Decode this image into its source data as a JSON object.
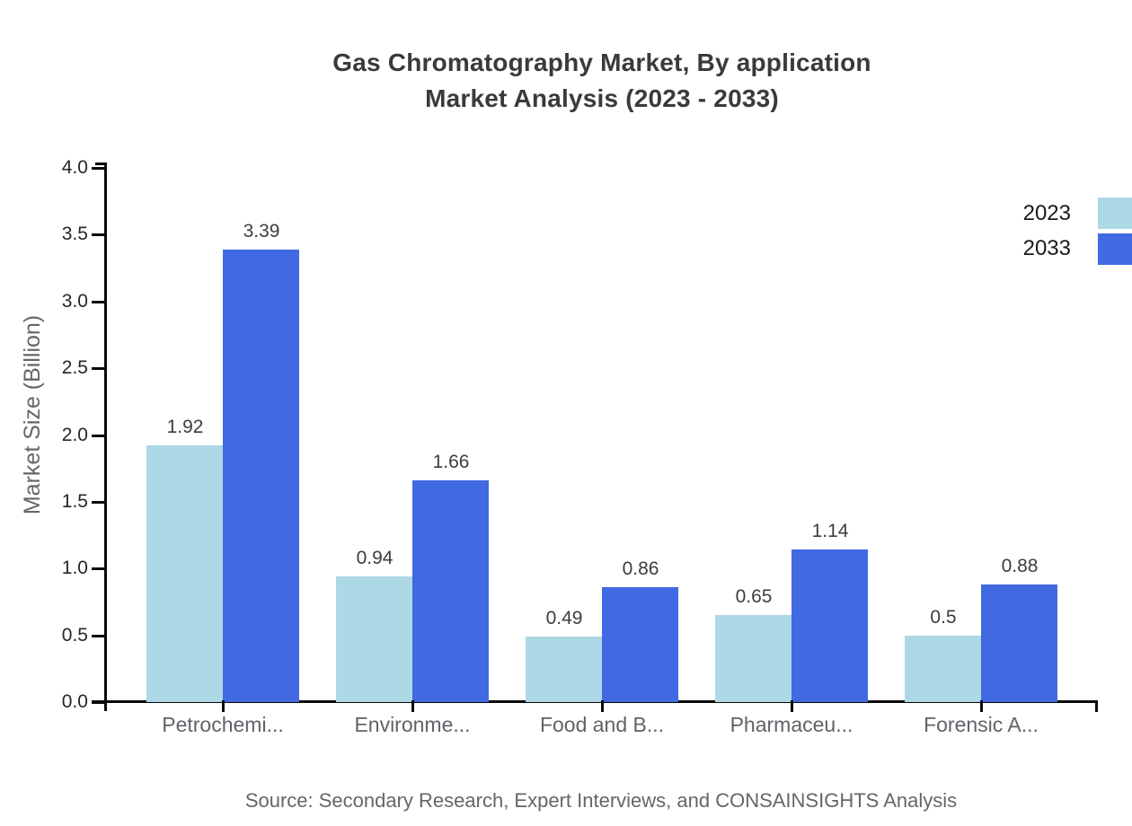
{
  "title": {
    "line1": "Gas Chromatography Market, By application",
    "line2": "Market Analysis (2023 - 2033)"
  },
  "source": "Source: Secondary Research, Expert Interviews, and CONSAINSIGHTS Analysis",
  "legend": [
    {
      "label": "2023",
      "color": "#ADD8E6"
    },
    {
      "label": "2033",
      "color": "#4169E1"
    }
  ],
  "chart_data": {
    "type": "bar",
    "title": "Gas Chromatography Market, By application Market Analysis (2023 - 2033)",
    "categories": [
      "Petrochemi...",
      "Environme...",
      "Food and B...",
      "Pharmaceu...",
      "Forensic A..."
    ],
    "series": [
      {
        "name": "2023",
        "color": "#ADD8E6",
        "values": [
          1.92,
          0.94,
          0.49,
          0.65,
          0.5
        ]
      },
      {
        "name": "2033",
        "color": "#4169E1",
        "values": [
          3.39,
          1.66,
          0.86,
          1.14,
          0.88
        ]
      }
    ],
    "value_labels": [
      "1.92",
      "3.39",
      "0.94",
      "1.66",
      "0.49",
      "0.86",
      "0.65",
      "1.14",
      "0.5",
      "0.88"
    ],
    "xlabel": "",
    "ylabel": "Market Size (Billion)",
    "ylim": [
      0,
      4.0
    ],
    "yticks": [
      "0.0",
      "0.5",
      "1.0",
      "1.5",
      "2.0",
      "2.5",
      "3.0",
      "3.5",
      "4.0"
    ],
    "grid": false,
    "legend_position": "top-right",
    "axis_color": "#0a0a0a"
  }
}
